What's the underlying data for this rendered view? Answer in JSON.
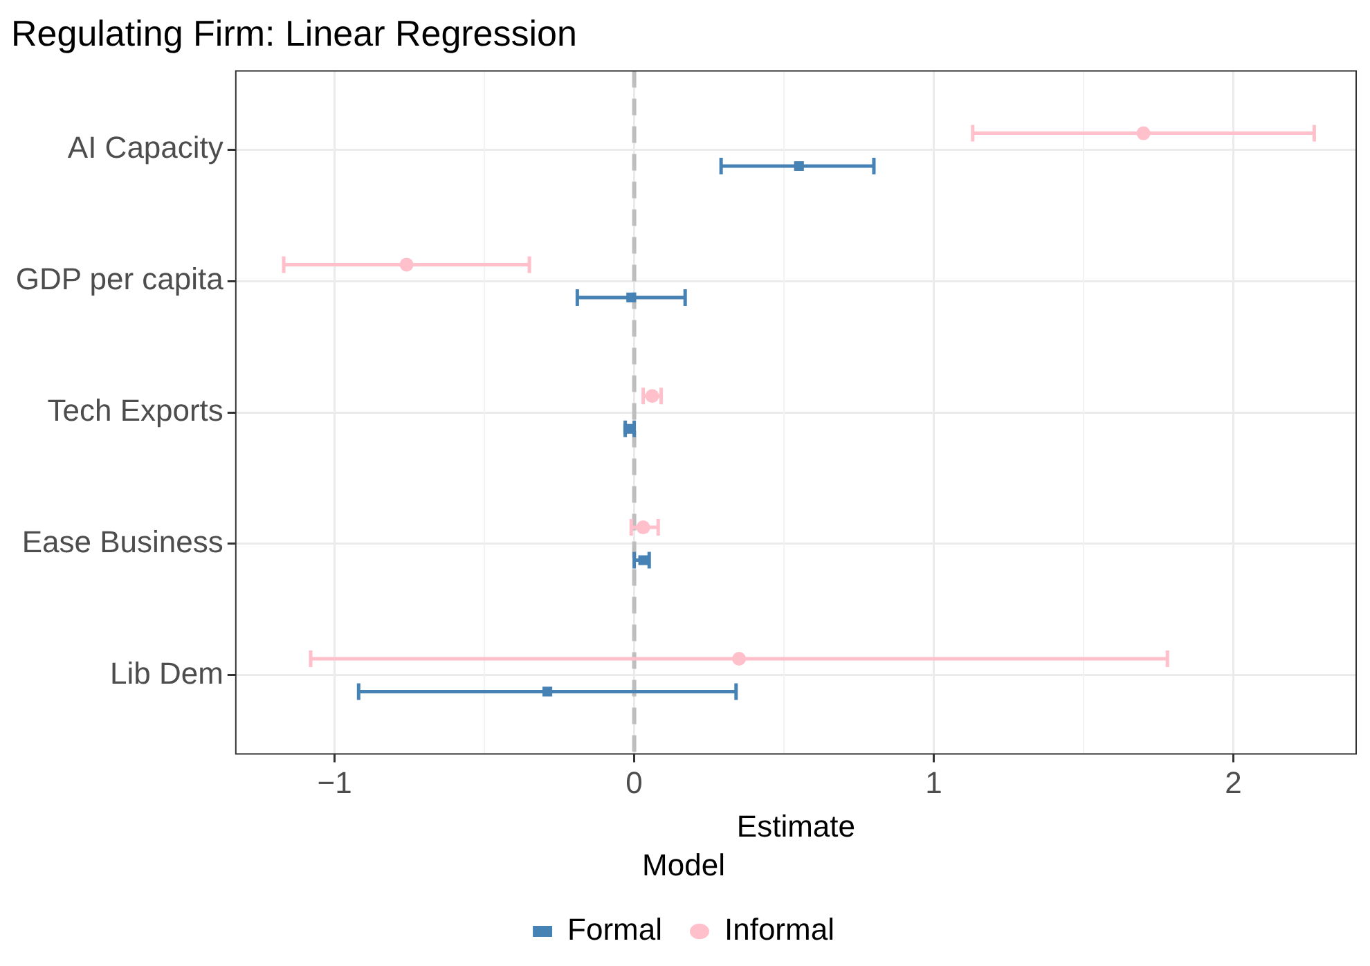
{
  "chart_data": {
    "type": "scatter",
    "title": "Regulating Firm: Linear Regression",
    "xlabel": "Estimate",
    "legend_title": "Model",
    "legend": "bottom",
    "grid": true,
    "categories": [
      "AI Capacity",
      "GDP per capita",
      "Tech Exports",
      "Ease Business",
      "Lib Dem"
    ],
    "orientation": "horizontal",
    "xlim": [
      -1.33,
      2.41
    ],
    "xticks": [
      {
        "value": -1,
        "label": "−1"
      },
      0,
      1,
      2
    ],
    "ref_lines": [
      {
        "axis": "x",
        "value": 0,
        "color": "#bebebe",
        "line_style": "dashed"
      }
    ],
    "series": [
      {
        "name": "Formal",
        "color": "#4682b4",
        "marker": "square",
        "values": [
          0.55,
          -0.01,
          -0.02,
          0.03,
          -0.29
        ],
        "errors": [
          [
            0.29,
            0.8
          ],
          [
            -0.19,
            0.17
          ],
          [
            -0.03,
            0.0
          ],
          [
            0.0,
            0.05
          ],
          [
            -0.92,
            0.34
          ]
        ]
      },
      {
        "name": "Informal",
        "color": "#ffc0cb",
        "marker": "circle",
        "values": [
          1.7,
          -0.76,
          0.06,
          0.03,
          0.35
        ],
        "errors": [
          [
            1.13,
            2.27
          ],
          [
            -1.17,
            -0.35
          ],
          [
            0.03,
            0.09
          ],
          [
            -0.01,
            0.08
          ],
          [
            -1.08,
            1.78
          ]
        ]
      }
    ]
  }
}
